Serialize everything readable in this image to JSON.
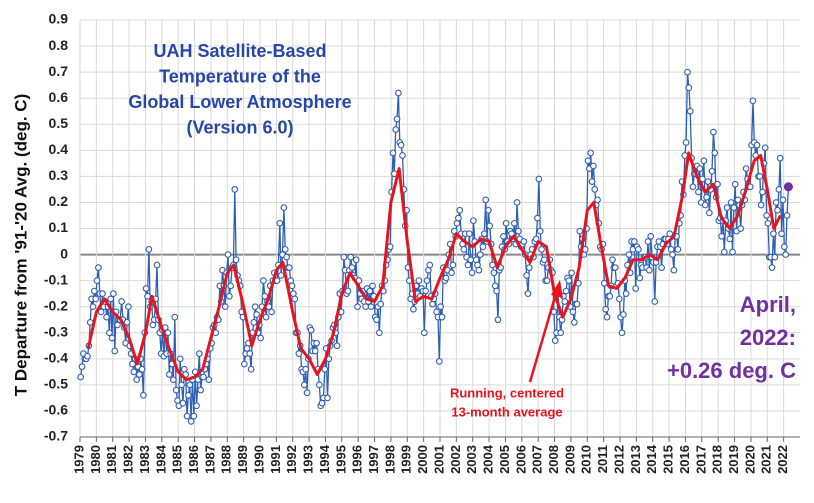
{
  "chart_data": {
    "type": "line",
    "title": [
      "UAH Satellite-Based",
      "Temperature of the",
      "Global Lower Atmosphere",
      "(Version 6.0)"
    ],
    "y_label": "T Departure from '91-'20 Avg. (deg. C)",
    "annotation": [
      "April,",
      "2022:",
      "+0.26 deg. C"
    ],
    "running_label": [
      "Running, centered",
      "13-month average"
    ],
    "color": "#2f5fb3",
    "last_point_color": "#7030a0",
    "title_color": "#2846a8",
    "xlim": [
      1979,
      2023
    ],
    "xticks": [
      1979,
      1980,
      1981,
      1982,
      1983,
      1984,
      1985,
      1986,
      1987,
      1988,
      1989,
      1990,
      1991,
      1992,
      1993,
      1994,
      1995,
      1996,
      1997,
      1998,
      1999,
      2000,
      2001,
      2002,
      2003,
      2004,
      2005,
      2006,
      2007,
      2008,
      2009,
      2010,
      2011,
      2012,
      2013,
      2014,
      2015,
      2016,
      2017,
      2018,
      2019,
      2020,
      2021,
      2022
    ],
    "ylim": [
      -0.7,
      0.9
    ],
    "yticks": [
      -0.7,
      -0.6,
      -0.5,
      -0.4,
      -0.3,
      -0.2,
      -0.1,
      0,
      0.1,
      0.2,
      0.3,
      0.4,
      0.5,
      0.6,
      0.7,
      0.8,
      0.9
    ],
    "grid": true,
    "monthly": [
      {
        "year": 1979,
        "values": [
          -0.47,
          -0.43,
          -0.38,
          -0.4,
          -0.4,
          -0.39,
          -0.35,
          -0.26,
          -0.17,
          -0.2,
          -0.14,
          -0.17
        ]
      },
      {
        "year": 1980,
        "values": [
          -0.1,
          -0.05,
          -0.15,
          -0.22,
          -0.15,
          -0.2,
          -0.18,
          -0.24,
          -0.2,
          -0.3,
          -0.17,
          -0.32
        ]
      },
      {
        "year": 1981,
        "values": [
          -0.15,
          -0.37,
          -0.22,
          -0.27,
          -0.25,
          -0.25,
          -0.18,
          -0.25,
          -0.28,
          -0.34,
          -0.26,
          -0.2
        ]
      },
      {
        "year": 1982,
        "values": [
          -0.35,
          -0.38,
          -0.42,
          -0.45,
          -0.4,
          -0.48,
          -0.43,
          -0.46,
          -0.4,
          -0.44,
          -0.54,
          -0.3
        ]
      },
      {
        "year": 1983,
        "values": [
          -0.13,
          -0.16,
          0.02,
          -0.2,
          -0.18,
          -0.27,
          -0.25,
          -0.17,
          -0.04,
          -0.25,
          -0.3,
          -0.38
        ]
      },
      {
        "year": 1984,
        "values": [
          -0.29,
          -0.39,
          -0.28,
          -0.38,
          -0.3,
          -0.46,
          -0.38,
          -0.42,
          -0.48,
          -0.24,
          -0.52,
          -0.56
        ]
      },
      {
        "year": 1985,
        "values": [
          -0.58,
          -0.4,
          -0.5,
          -0.57,
          -0.44,
          -0.46,
          -0.62,
          -0.54,
          -0.5,
          -0.64,
          -0.48,
          -0.62
        ]
      },
      {
        "year": 1986,
        "values": [
          -0.45,
          -0.58,
          -0.48,
          -0.38,
          -0.52,
          -0.47,
          -0.47,
          -0.44,
          -0.42,
          -0.4,
          -0.48,
          -0.36
        ]
      },
      {
        "year": 1987,
        "values": [
          -0.34,
          -0.28,
          -0.27,
          -0.3,
          -0.24,
          -0.25,
          -0.12,
          -0.18,
          -0.06,
          -0.12,
          -0.2,
          -0.07
        ]
      },
      {
        "year": 1988,
        "values": [
          0.0,
          -0.16,
          -0.12,
          -0.05,
          -0.04,
          0.25,
          -0.02,
          -0.08,
          -0.1,
          -0.12,
          -0.22,
          -0.24
        ]
      },
      {
        "year": 1989,
        "values": [
          -0.42,
          -0.38,
          -0.36,
          -0.34,
          -0.38,
          -0.44,
          -0.3,
          -0.26,
          -0.2,
          -0.23,
          -0.3,
          -0.27
        ]
      },
      {
        "year": 1990,
        "values": [
          -0.32,
          -0.2,
          -0.1,
          -0.16,
          -0.24,
          -0.18,
          -0.2,
          -0.12,
          -0.22,
          -0.1,
          -0.07,
          -0.1
        ]
      },
      {
        "year": 1991,
        "values": [
          -0.1,
          -0.04,
          0.12,
          -0.08,
          0.0,
          0.18,
          0.02,
          -0.01,
          -0.05,
          -0.05,
          -0.1,
          -0.12
        ]
      },
      {
        "year": 1992,
        "values": [
          -0.15,
          -0.17,
          -0.3,
          -0.3,
          -0.38,
          -0.35,
          -0.44,
          -0.45,
          -0.5,
          -0.44,
          -0.53,
          -0.4
        ]
      },
      {
        "year": 1993,
        "values": [
          -0.28,
          -0.29,
          -0.37,
          -0.34,
          -0.37,
          -0.34,
          -0.44,
          -0.5,
          -0.58,
          -0.57,
          -0.55,
          -0.44
        ]
      },
      {
        "year": 1994,
        "values": [
          -0.36,
          -0.55,
          -0.4,
          -0.35,
          -0.33,
          -0.28,
          -0.27,
          -0.3,
          -0.35,
          -0.24,
          -0.15,
          -0.22
        ]
      },
      {
        "year": 1995,
        "values": [
          -0.14,
          -0.01,
          -0.06,
          -0.15,
          -0.14,
          -0.06,
          -0.01,
          -0.05,
          -0.08,
          -0.09,
          -0.02,
          -0.2
        ]
      },
      {
        "year": 1996,
        "values": [
          -0.1,
          -0.15,
          -0.17,
          -0.14,
          -0.18,
          -0.2,
          -0.13,
          -0.18,
          -0.14,
          -0.2,
          -0.12,
          -0.16
        ]
      },
      {
        "year": 1997,
        "values": [
          -0.24,
          -0.25,
          -0.2,
          -0.3,
          -0.19,
          -0.12,
          -0.14,
          -0.1,
          -0.04,
          -0.02,
          0.02,
          0.03
        ]
      },
      {
        "year": 1998,
        "values": [
          0.24,
          0.39,
          0.31,
          0.48,
          0.52,
          0.62,
          0.43,
          0.42,
          0.38,
          0.25,
          0.11,
          0.17
        ]
      },
      {
        "year": 1999,
        "values": [
          -0.05,
          -0.1,
          -0.17,
          -0.15,
          -0.21,
          -0.18,
          -0.12,
          -0.15,
          -0.1,
          -0.16,
          -0.13,
          -0.14
        ]
      },
      {
        "year": 2000,
        "values": [
          -0.3,
          -0.14,
          -0.1,
          -0.06,
          -0.04,
          -0.16,
          -0.19,
          -0.17,
          -0.15,
          -0.22,
          -0.24,
          -0.41
        ]
      },
      {
        "year": 2001,
        "values": [
          -0.2,
          -0.24,
          -0.05,
          -0.1,
          -0.09,
          -0.06,
          0.0,
          0.04,
          -0.07,
          -0.04,
          0.09,
          0.07
        ]
      },
      {
        "year": 2002,
        "values": [
          0.12,
          0.14,
          0.17,
          0.08,
          0.04,
          0.02,
          0.08,
          -0.01,
          -0.04,
          0.08,
          -0.02,
          -0.07
        ]
      },
      {
        "year": 2003,
        "values": [
          0.13,
          0.05,
          -0.02,
          -0.04,
          -0.06,
          0.0,
          0.06,
          0.03,
          0.08,
          0.21,
          0.05,
          0.17
        ]
      },
      {
        "year": 2004,
        "values": [
          0.11,
          0.04,
          -0.04,
          -0.07,
          -0.12,
          -0.14,
          -0.25,
          -0.06,
          -0.05,
          0.03,
          0.07,
          0.02
        ]
      },
      {
        "year": 2005,
        "values": [
          0.12,
          0.05,
          0.04,
          0.09,
          0.08,
          0.06,
          0.12,
          0.04,
          0.2,
          0.09,
          0.06,
          0.03
        ]
      },
      {
        "year": 2006,
        "values": [
          0.04,
          0.05,
          0.0,
          -0.08,
          -0.15,
          -0.05,
          0.0,
          0.02,
          -0.01,
          0.05,
          0.06,
          0.14
        ]
      },
      {
        "year": 2007,
        "values": [
          0.29,
          0.09,
          0.02,
          -0.03,
          -0.02,
          -0.1,
          -0.1,
          -0.05,
          -0.02,
          -0.06,
          -0.07,
          -0.22
        ]
      },
      {
        "year": 2008,
        "values": [
          -0.33,
          -0.3,
          -0.14,
          -0.24,
          -0.3,
          -0.25,
          -0.16,
          -0.18,
          -0.14,
          -0.09,
          -0.1,
          -0.2
        ]
      },
      {
        "year": 2009,
        "values": [
          -0.07,
          -0.22,
          -0.26,
          -0.19,
          -0.19,
          -0.11,
          0.09,
          0.03,
          0.06,
          0.0,
          0.02,
          0.1
        ]
      },
      {
        "year": 2010,
        "values": [
          0.36,
          0.33,
          0.39,
          0.28,
          0.34,
          0.25,
          0.19,
          0.21,
          0.12,
          0.03,
          0.02,
          0.04
        ]
      },
      {
        "year": 2011,
        "values": [
          -0.11,
          -0.21,
          -0.24,
          -0.16,
          -0.16,
          -0.12,
          -0.02,
          -0.05,
          -0.05,
          -0.12,
          -0.11,
          -0.17
        ]
      },
      {
        "year": 2012,
        "values": [
          -0.24,
          -0.3,
          -0.23,
          -0.1,
          -0.15,
          -0.04,
          0.0,
          -0.07,
          0.05,
          0.02,
          0.05,
          -0.13
        ]
      },
      {
        "year": 2013,
        "values": [
          0.03,
          0.02,
          -0.09,
          -0.04,
          -0.05,
          -0.01,
          -0.01,
          -0.05,
          0.05,
          -0.06,
          0.07,
          -0.01
        ]
      },
      {
        "year": 2014,
        "values": [
          -0.03,
          -0.18,
          -0.03,
          0.03,
          0.05,
          0.03,
          -0.05,
          0.04,
          0.06,
          0.06,
          0.04,
          0.06
        ]
      },
      {
        "year": 2015,
        "values": [
          0.08,
          0.02,
          0.0,
          -0.06,
          0.07,
          0.07,
          0.02,
          0.12,
          0.15,
          0.28,
          0.23,
          0.38
        ]
      },
      {
        "year": 2016,
        "values": [
          0.43,
          0.7,
          0.64,
          0.55,
          0.37,
          0.26,
          0.31,
          0.31,
          0.34,
          0.24,
          0.33,
          0.2
        ]
      },
      {
        "year": 2017,
        "values": [
          0.29,
          0.36,
          0.19,
          0.22,
          0.28,
          0.16,
          0.25,
          0.32,
          0.47,
          0.39,
          0.22,
          0.27
        ]
      },
      {
        "year": 2018,
        "values": [
          0.13,
          0.14,
          0.07,
          0.13,
          0.01,
          0.13,
          0.18,
          0.1,
          0.06,
          0.2,
          0.01,
          0.18
        ]
      },
      {
        "year": 2019,
        "values": [
          0.27,
          0.09,
          0.21,
          0.19,
          0.1,
          0.19,
          0.24,
          0.21,
          0.33,
          0.29,
          0.26,
          0.26
        ]
      },
      {
        "year": 2020,
        "values": [
          0.42,
          0.59,
          0.43,
          0.38,
          0.42,
          0.3,
          0.3,
          0.19,
          0.24,
          0.35,
          0.41,
          0.15
        ]
      },
      {
        "year": 2021,
        "values": [
          0.12,
          -0.01,
          -0.01,
          -0.05,
          0.08,
          -0.01,
          0.2,
          0.17,
          0.25,
          0.37,
          0.08,
          0.21
        ]
      },
      {
        "year": 2022,
        "values": [
          0.03,
          0.0,
          0.15,
          0.26
        ]
      }
    ],
    "running_average": {
      "color": "#e8141c",
      "x": [
        1979.5,
        1980.0,
        1980.5,
        1981.0,
        1981.5,
        1982.0,
        1982.5,
        1983.0,
        1983.4,
        1984.0,
        1984.5,
        1985.0,
        1985.5,
        1986.0,
        1986.5,
        1987.0,
        1987.5,
        1988.0,
        1988.4,
        1989.0,
        1989.5,
        1990.0,
        1990.5,
        1991.0,
        1991.4,
        1992.0,
        1992.5,
        1993.0,
        1993.5,
        1994.0,
        1994.5,
        1995.0,
        1995.5,
        1996.0,
        1996.5,
        1997.0,
        1997.5,
        1998.0,
        1998.5,
        1999.0,
        1999.5,
        2000.0,
        2000.5,
        2001.0,
        2001.5,
        2002.0,
        2002.5,
        2003.0,
        2003.5,
        2004.0,
        2004.5,
        2005.0,
        2005.5,
        2006.0,
        2006.5,
        2007.0,
        2007.5,
        2008.0,
        2008.5,
        2009.0,
        2009.5,
        2010.0,
        2010.4,
        2010.8,
        2011.3,
        2011.8,
        2012.3,
        2012.8,
        2013.3,
        2013.8,
        2014.3,
        2014.8,
        2015.3,
        2015.8,
        2016.2,
        2016.7,
        2017.2,
        2017.7,
        2018.2,
        2018.7,
        2019.2,
        2019.7,
        2020.2,
        2020.6,
        2021.0,
        2021.4,
        2021.8
      ],
      "values": [
        -0.36,
        -0.22,
        -0.17,
        -0.22,
        -0.25,
        -0.32,
        -0.42,
        -0.3,
        -0.16,
        -0.28,
        -0.37,
        -0.45,
        -0.48,
        -0.47,
        -0.44,
        -0.32,
        -0.2,
        -0.07,
        -0.04,
        -0.2,
        -0.35,
        -0.25,
        -0.17,
        -0.06,
        -0.03,
        -0.22,
        -0.36,
        -0.4,
        -0.46,
        -0.4,
        -0.3,
        -0.15,
        -0.07,
        -0.12,
        -0.17,
        -0.18,
        -0.12,
        0.2,
        0.33,
        0.05,
        -0.18,
        -0.16,
        -0.17,
        -0.09,
        -0.02,
        0.08,
        0.05,
        0.03,
        0.06,
        0.05,
        -0.05,
        0.03,
        0.07,
        0.02,
        -0.03,
        0.05,
        0.03,
        -0.15,
        -0.24,
        -0.17,
        -0.05,
        0.17,
        0.2,
        0.05,
        -0.12,
        -0.13,
        -0.09,
        -0.02,
        -0.02,
        0.0,
        -0.02,
        0.04,
        0.07,
        0.22,
        0.39,
        0.3,
        0.24,
        0.27,
        0.14,
        0.1,
        0.15,
        0.25,
        0.36,
        0.38,
        0.25,
        0.1,
        0.15
      ]
    }
  }
}
